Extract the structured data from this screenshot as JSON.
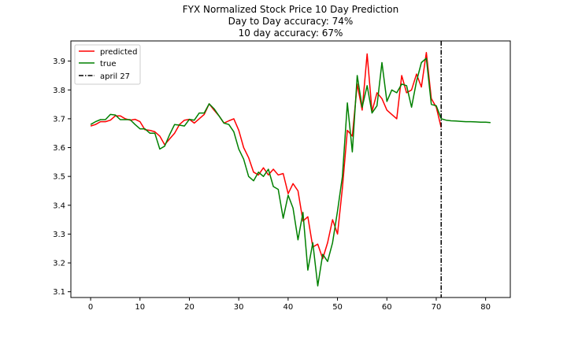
{
  "chart_data": {
    "type": "line",
    "title_lines": [
      "FYX Normalized Stock Price 10 Day Prediction",
      "Day to Day accuracy: 74%",
      "10 day accuracy: 67%"
    ],
    "xlabel": "",
    "ylabel": "",
    "xlim": [
      -4,
      85
    ],
    "ylim": [
      3.08,
      3.97
    ],
    "xticks": [
      0,
      10,
      20,
      30,
      40,
      50,
      60,
      70,
      80
    ],
    "yticks": [
      3.1,
      3.2,
      3.3,
      3.4,
      3.5,
      3.6,
      3.7,
      3.8,
      3.9
    ],
    "grid": false,
    "legend_position": "top-left",
    "series": [
      {
        "name": "predicted",
        "color": "#ff0000",
        "style": "solid",
        "x": [
          0,
          1,
          2,
          3,
          4,
          5,
          6,
          7,
          8,
          9,
          10,
          11,
          12,
          13,
          14,
          15,
          16,
          17,
          18,
          19,
          20,
          21,
          22,
          23,
          24,
          25,
          26,
          27,
          28,
          29,
          30,
          31,
          32,
          33,
          34,
          35,
          36,
          37,
          38,
          39,
          40,
          41,
          42,
          43,
          44,
          45,
          46,
          47,
          48,
          49,
          50,
          51,
          52,
          53,
          54,
          55,
          56,
          57,
          58,
          59,
          60,
          61,
          62,
          63,
          64,
          65,
          66,
          67,
          68,
          69,
          70,
          71
        ],
        "y": [
          3.675,
          3.68,
          3.69,
          3.69,
          3.695,
          3.71,
          3.71,
          3.7,
          3.695,
          3.698,
          3.69,
          3.662,
          3.66,
          3.655,
          3.64,
          3.61,
          3.63,
          3.65,
          3.68,
          3.695,
          3.698,
          3.685,
          3.7,
          3.715,
          3.752,
          3.73,
          3.71,
          3.685,
          3.693,
          3.7,
          3.66,
          3.6,
          3.565,
          3.515,
          3.505,
          3.53,
          3.505,
          3.525,
          3.505,
          3.51,
          3.44,
          3.475,
          3.45,
          3.345,
          3.36,
          3.255,
          3.265,
          3.215,
          3.27,
          3.35,
          3.3,
          3.46,
          3.66,
          3.64,
          3.82,
          3.73,
          3.925,
          3.725,
          3.79,
          3.77,
          3.73,
          3.715,
          3.7,
          3.85,
          3.79,
          3.8,
          3.855,
          3.81,
          3.93,
          3.77,
          3.74,
          3.67
        ]
      },
      {
        "name": "true",
        "color": "#008000",
        "style": "solid",
        "x": [
          0,
          1,
          2,
          3,
          4,
          5,
          6,
          7,
          8,
          9,
          10,
          11,
          12,
          13,
          14,
          15,
          16,
          17,
          18,
          19,
          20,
          21,
          22,
          23,
          24,
          25,
          26,
          27,
          28,
          29,
          30,
          31,
          32,
          33,
          34,
          35,
          36,
          37,
          38,
          39,
          40,
          41,
          42,
          43,
          44,
          45,
          46,
          47,
          48,
          49,
          50,
          51,
          52,
          53,
          54,
          55,
          56,
          57,
          58,
          59,
          60,
          61,
          62,
          63,
          64,
          65,
          66,
          67,
          68,
          69,
          70,
          71,
          72,
          73,
          74,
          75,
          76,
          77,
          78,
          79,
          80,
          81
        ],
        "y": [
          3.68,
          3.69,
          3.697,
          3.697,
          3.715,
          3.713,
          3.697,
          3.697,
          3.697,
          3.68,
          3.665,
          3.665,
          3.65,
          3.65,
          3.595,
          3.605,
          3.645,
          3.68,
          3.678,
          3.675,
          3.698,
          3.695,
          3.72,
          3.72,
          3.752,
          3.735,
          3.71,
          3.685,
          3.68,
          3.655,
          3.595,
          3.56,
          3.5,
          3.485,
          3.515,
          3.5,
          3.525,
          3.465,
          3.455,
          3.355,
          3.435,
          3.39,
          3.28,
          3.375,
          3.175,
          3.27,
          3.12,
          3.23,
          3.205,
          3.27,
          3.38,
          3.5,
          3.755,
          3.585,
          3.85,
          3.74,
          3.815,
          3.72,
          3.745,
          3.895,
          3.76,
          3.8,
          3.79,
          3.82,
          3.815,
          3.74,
          3.83,
          3.895,
          3.91,
          3.75,
          3.745,
          3.7,
          3.695,
          3.693,
          3.692,
          3.691,
          3.69,
          3.69,
          3.689,
          3.688,
          3.688,
          3.687
        ]
      }
    ],
    "vlines": [
      {
        "name": "april 27",
        "x": 71,
        "color": "#000000",
        "style": "dashdot"
      }
    ]
  }
}
